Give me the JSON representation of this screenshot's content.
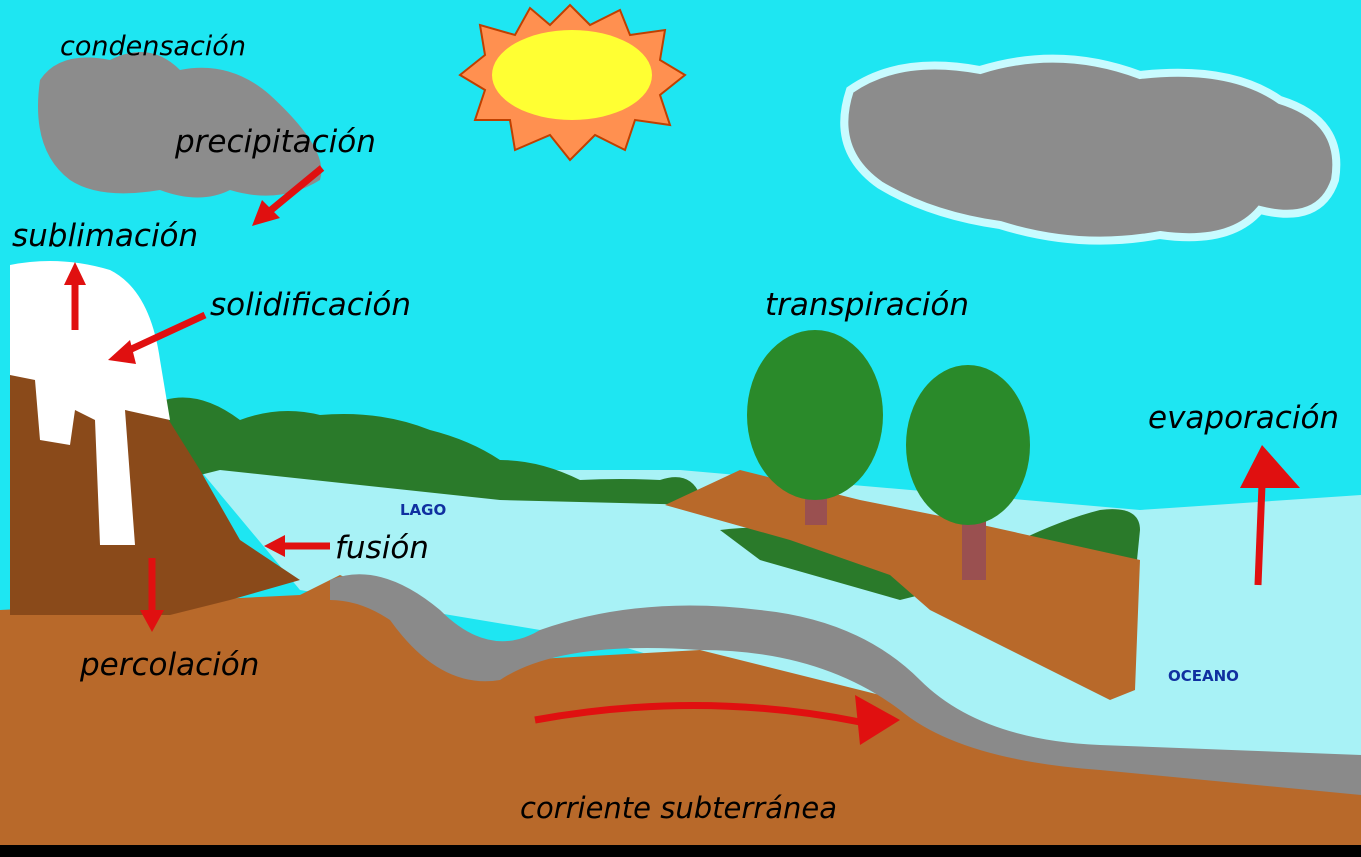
{
  "labels": {
    "condensation": "condensación",
    "precipitation": "precipitación",
    "sublimation": "sublimación",
    "solidification": "solidificación",
    "transpiration": "transpiración",
    "evaporation": "evaporación",
    "fusion": "fusión",
    "lake": "LAGO",
    "percolation": "percolación",
    "ocean": "OCEANO",
    "groundwater": "corriente subterránea"
  }
}
